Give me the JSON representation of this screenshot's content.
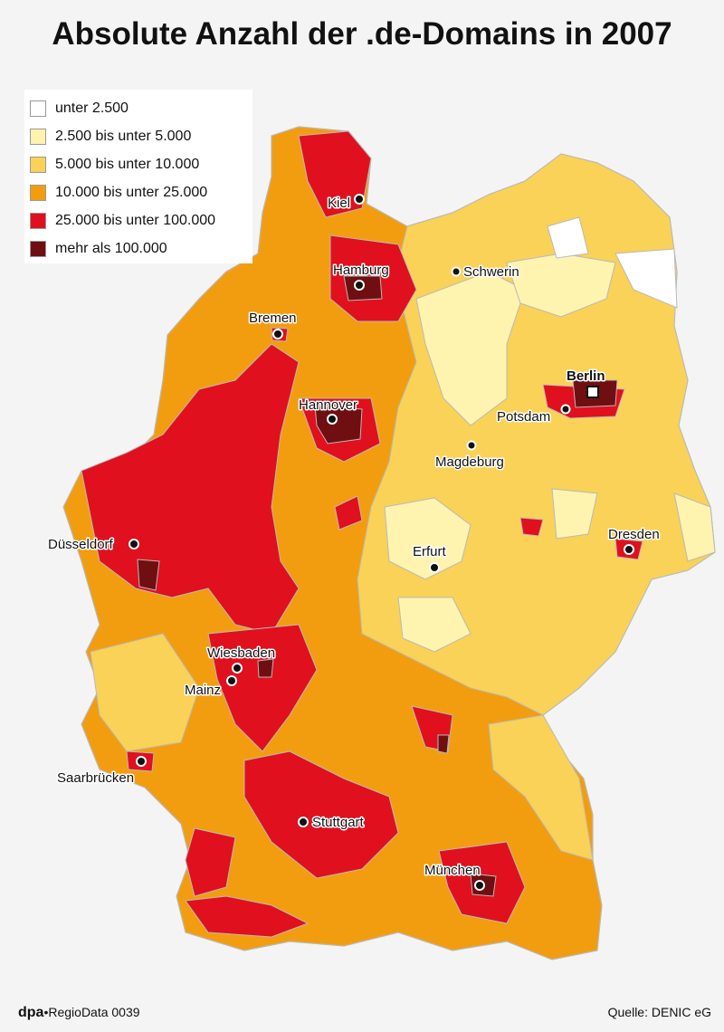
{
  "title": "Absolute Anzahl der .de-Domains in 2007",
  "legend": {
    "items": [
      {
        "label": "unter 2.500",
        "color": "#ffffff"
      },
      {
        "label": "2.500 bis unter 5.000",
        "color": "#fff3b0"
      },
      {
        "label": "5.000 bis unter 10.000",
        "color": "#f9d257"
      },
      {
        "label": "10.000 bis unter 25.000",
        "color": "#f29d0f"
      },
      {
        "label": "25.000 bis unter 100.000",
        "color": "#e0101e"
      },
      {
        "label": "mehr als 100.000",
        "color": "#6f0f12"
      }
    ]
  },
  "cities": [
    {
      "name": "Kiel"
    },
    {
      "name": "Hamburg"
    },
    {
      "name": "Schwerin"
    },
    {
      "name": "Bremen"
    },
    {
      "name": "Berlin",
      "capital": true
    },
    {
      "name": "Potsdam"
    },
    {
      "name": "Hannover"
    },
    {
      "name": "Magdeburg"
    },
    {
      "name": "Düsseldorf"
    },
    {
      "name": "Dresden"
    },
    {
      "name": "Erfurt"
    },
    {
      "name": "Wiesbaden"
    },
    {
      "name": "Mainz"
    },
    {
      "name": "Saarbrücken"
    },
    {
      "name": "Stuttgart"
    },
    {
      "name": "München"
    }
  ],
  "footer": {
    "brand": "dpa",
    "series": "RegioData 0039",
    "source": "Quelle: DENIC eG"
  }
}
